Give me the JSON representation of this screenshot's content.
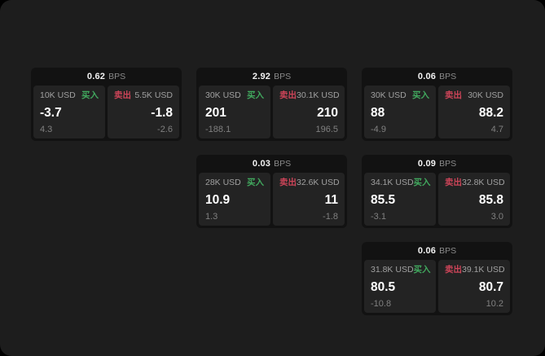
{
  "app": {
    "page_background": "#000000",
    "window_background": "#1d1d1d",
    "card_background": "#121212",
    "panel_background": "#232323"
  },
  "labels": {
    "bps": "BPS",
    "buy": "买入",
    "sell": "卖出"
  },
  "colors": {
    "buy": "#41a85e",
    "sell": "#cc4458",
    "value": "#ffffff",
    "muted": "#8a8a8a"
  },
  "cards": [
    {
      "col": 0,
      "row": 0,
      "bps": "0.62",
      "buy_amount": "10K USD",
      "buy_value": "-3.7",
      "buy_sub": "4.3",
      "sell_amount": "5.5K USD",
      "sell_value": "-1.8",
      "sell_sub": "-2.6"
    },
    {
      "col": 1,
      "row": 0,
      "bps": "2.92",
      "buy_amount": "30K USD",
      "buy_value": "201",
      "buy_sub": "-188.1",
      "sell_amount": "30.1K USD",
      "sell_value": "210",
      "sell_sub": "196.5"
    },
    {
      "col": 2,
      "row": 0,
      "bps": "0.06",
      "buy_amount": "30K USD",
      "buy_value": "88",
      "buy_sub": "-4.9",
      "sell_amount": "30K USD",
      "sell_value": "88.2",
      "sell_sub": "4.7"
    },
    {
      "col": 1,
      "row": 1,
      "bps": "0.03",
      "buy_amount": "28K USD",
      "buy_value": "10.9",
      "buy_sub": "1.3",
      "sell_amount": "32.6K USD",
      "sell_value": "11",
      "sell_sub": "-1.8"
    },
    {
      "col": 2,
      "row": 1,
      "bps": "0.09",
      "buy_amount": "34.1K USD",
      "buy_value": "85.5",
      "buy_sub": "-3.1",
      "sell_amount": "32.8K USD",
      "sell_value": "85.8",
      "sell_sub": "3.0"
    },
    {
      "col": 2,
      "row": 2,
      "bps": "0.06",
      "buy_amount": "31.8K USD",
      "buy_value": "80.5",
      "buy_sub": "-10.8",
      "sell_amount": "39.1K USD",
      "sell_value": "80.7",
      "sell_sub": "10.2"
    }
  ]
}
